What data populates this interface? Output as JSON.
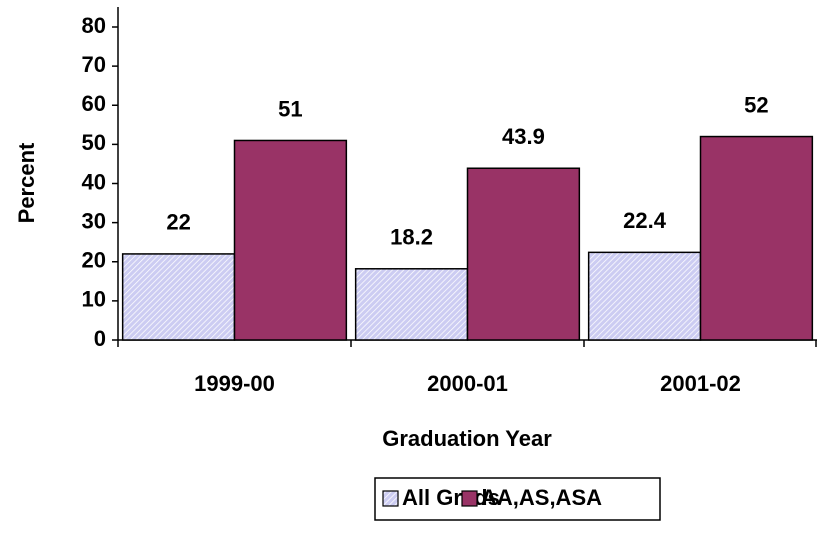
{
  "chart_data": {
    "type": "bar",
    "x_label": "Graduation Year",
    "y_label": "Percent",
    "categories": [
      "1999-00",
      "2000-01",
      "2001-02"
    ],
    "series": [
      {
        "name": "All Grads",
        "color": "#ccccf2",
        "values": [
          22,
          18.2,
          22.4
        ]
      },
      {
        "name": "AA,AS,ASA",
        "color": "#993366",
        "values": [
          51,
          43.9,
          52
        ]
      }
    ],
    "ylim": [
      0,
      80
    ],
    "yticks": [
      0,
      10,
      20,
      30,
      40,
      50,
      60,
      70,
      80
    ],
    "legend": "bottom"
  }
}
